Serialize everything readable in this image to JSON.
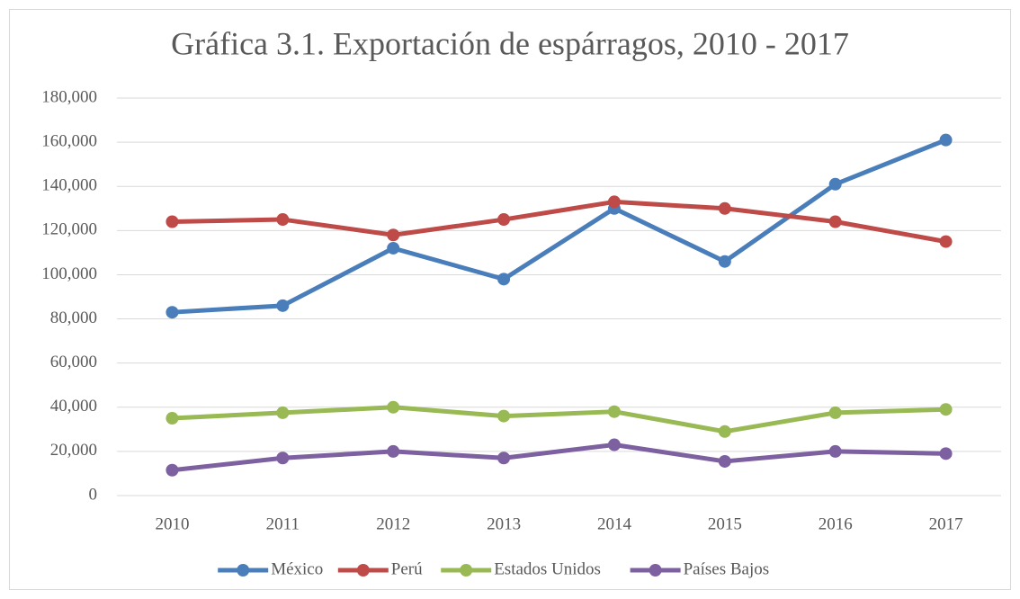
{
  "chart_data": {
    "type": "line",
    "title": "Gráfica 3.1. Exportación de espárragos, 2010 - 2017",
    "categories": [
      "2010",
      "2011",
      "2012",
      "2013",
      "2014",
      "2015",
      "2016",
      "2017"
    ],
    "series": [
      {
        "name": "México",
        "color": "#4a7ebb",
        "values": [
          83000,
          86000,
          112000,
          98000,
          130000,
          106000,
          141000,
          161000
        ]
      },
      {
        "name": "Perú",
        "color": "#be4b48",
        "values": [
          124000,
          125000,
          118000,
          125000,
          133000,
          130000,
          124000,
          115000
        ]
      },
      {
        "name": "Estados Unidos",
        "color": "#98b954",
        "values": [
          35000,
          37500,
          40000,
          36000,
          38000,
          29000,
          37500,
          39000
        ]
      },
      {
        "name": "Países Bajos",
        "color": "#7d60a0",
        "values": [
          11500,
          17000,
          20000,
          17000,
          23000,
          15500,
          20000,
          19000
        ]
      }
    ],
    "ylim": [
      0,
      180000
    ],
    "yticks": [
      0,
      {
        "value": 20000,
        "label": "20,000"
      },
      {
        "value": 40000,
        "label": "40,000"
      },
      {
        "value": 60000,
        "label": "60,000"
      },
      {
        "value": 80000,
        "label": "80,000"
      },
      {
        "value": 100000,
        "label": "100,000"
      },
      {
        "value": 120000,
        "label": "120,000"
      },
      {
        "value": 140000,
        "label": "140,000"
      },
      {
        "value": 160000,
        "label": "160,000"
      },
      {
        "value": 180000,
        "label": "180,000"
      }
    ],
    "grid": true,
    "legend": "bottom"
  }
}
